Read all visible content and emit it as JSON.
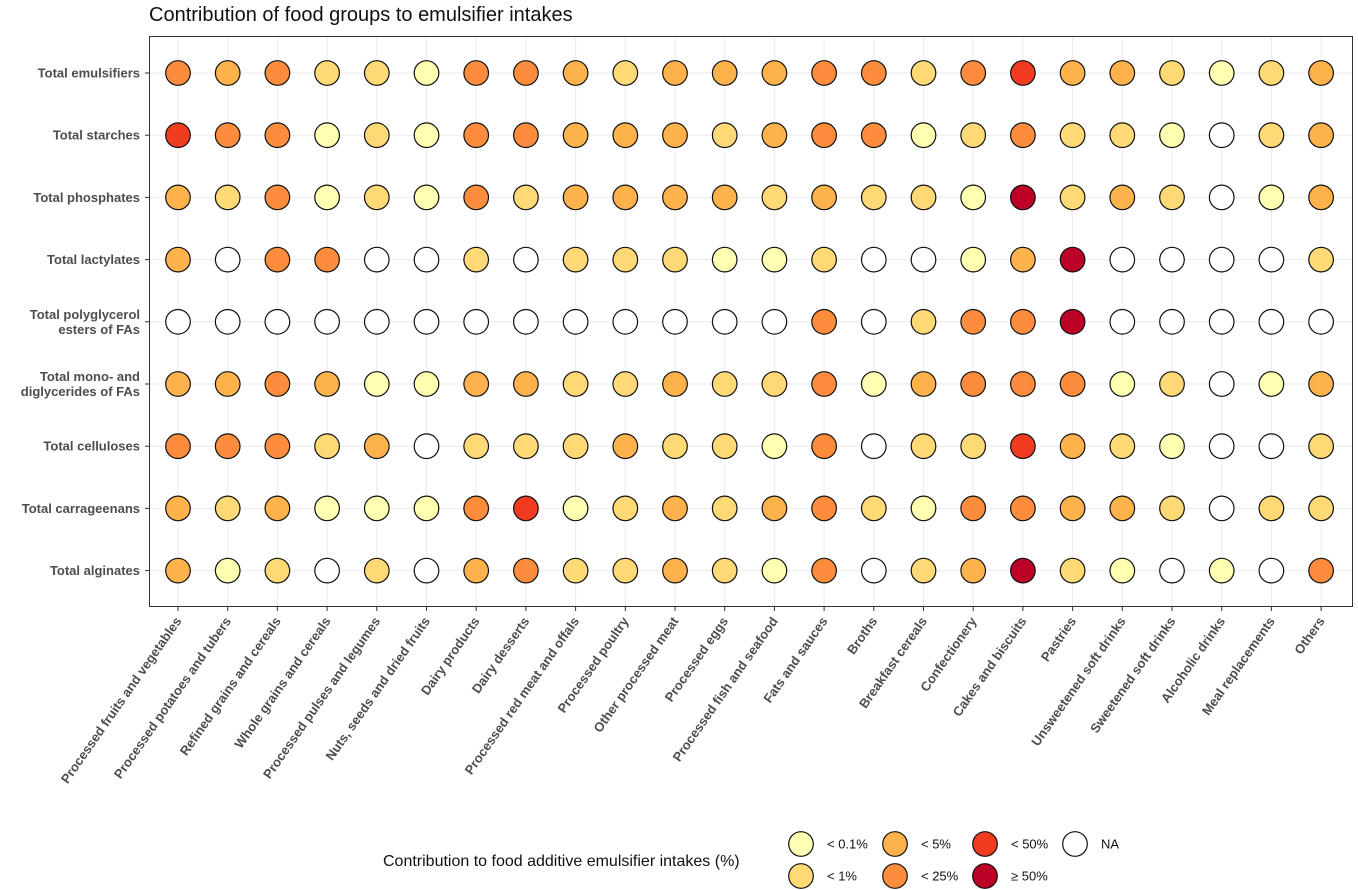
{
  "chart_data": {
    "type": "dot-matrix",
    "title": "Contribution of food groups to emulsifier intakes",
    "xlabel": "",
    "ylabel": "",
    "grid": true,
    "x_categories": [
      "Processed fruits and vegetables",
      "Processed potatoes and tubers",
      "Refined grains and cereals",
      "Whole grains and cereals",
      "Processed pulses and legumes",
      "Nuts, seeds and dried fruits",
      "Dairy products",
      "Dairy desserts",
      "Processed red meat and offals",
      "Processed poultry",
      "Other processed meat",
      "Processed eggs",
      "Processed fish and seafood",
      "Fats and sauces",
      "Broths",
      "Breakfast cereals",
      "Confectionery",
      "Cakes and biscuits",
      "Pastries",
      "Unsweetened soft drinks",
      "Sweetened soft drinks",
      "Alcoholic drinks",
      "Meal replacements",
      "Others"
    ],
    "y_categories": [
      [
        "Total emulsifiers"
      ],
      [
        "Total starches"
      ],
      [
        "Total phosphates"
      ],
      [
        "Total lactylates"
      ],
      [
        "Total polyglycerol",
        "esters of FAs"
      ],
      [
        "Total mono- and",
        "diglycerides of FAs"
      ],
      [
        "Total celluloses"
      ],
      [
        "Total carrageenans"
      ],
      [
        "Total alginates"
      ]
    ],
    "legend": {
      "title": "Contribution to food additive emulsifier intakes (%)",
      "position": "bottom",
      "classes": [
        {
          "code": 1,
          "label": "< 0.1%",
          "color": "#FFFFB2"
        },
        {
          "code": 2,
          "label": "< 1%",
          "color": "#FED976"
        },
        {
          "code": 3,
          "label": "< 5%",
          "color": "#FEB24C"
        },
        {
          "code": 4,
          "label": "< 25%",
          "color": "#FD8D3C"
        },
        {
          "code": 5,
          "label": "< 50%",
          "color": "#F03B20"
        },
        {
          "code": 6,
          "label": "≥ 50%",
          "color": "#BD0026"
        },
        {
          "code": 0,
          "label": "NA",
          "color": "#FFFFFF"
        }
      ]
    },
    "values": [
      [
        4,
        3,
        4,
        2,
        2,
        1,
        4,
        4,
        3,
        2,
        3,
        3,
        3,
        4,
        4,
        2,
        4,
        5,
        3,
        3,
        2,
        1,
        2,
        3
      ],
      [
        5,
        4,
        4,
        1,
        2,
        1,
        4,
        4,
        3,
        3,
        3,
        2,
        3,
        4,
        4,
        1,
        2,
        4,
        2,
        2,
        1,
        0,
        2,
        3
      ],
      [
        3,
        2,
        4,
        1,
        2,
        1,
        4,
        2,
        3,
        3,
        3,
        3,
        2,
        3,
        2,
        2,
        1,
        6,
        2,
        3,
        2,
        0,
        1,
        3
      ],
      [
        3,
        0,
        4,
        4,
        0,
        0,
        2,
        0,
        2,
        2,
        2,
        1,
        1,
        2,
        0,
        0,
        1,
        3,
        6,
        0,
        0,
        0,
        0,
        2
      ],
      [
        0,
        0,
        0,
        0,
        0,
        0,
        0,
        0,
        0,
        0,
        0,
        0,
        0,
        4,
        0,
        2,
        4,
        4,
        6,
        0,
        0,
        0,
        0,
        0
      ],
      [
        3,
        3,
        4,
        3,
        1,
        1,
        3,
        3,
        2,
        2,
        3,
        2,
        2,
        4,
        1,
        3,
        4,
        4,
        4,
        1,
        2,
        0,
        1,
        3
      ],
      [
        4,
        4,
        4,
        2,
        3,
        0,
        2,
        2,
        2,
        3,
        2,
        2,
        1,
        4,
        0,
        2,
        2,
        5,
        3,
        2,
        1,
        0,
        0,
        2
      ],
      [
        3,
        2,
        3,
        1,
        1,
        1,
        4,
        5,
        1,
        2,
        3,
        2,
        3,
        4,
        2,
        1,
        4,
        4,
        3,
        3,
        2,
        0,
        2,
        2
      ],
      [
        3,
        1,
        2,
        0,
        2,
        0,
        3,
        4,
        2,
        2,
        3,
        2,
        1,
        4,
        0,
        2,
        3,
        6,
        2,
        1,
        0,
        1,
        0,
        4
      ]
    ]
  }
}
